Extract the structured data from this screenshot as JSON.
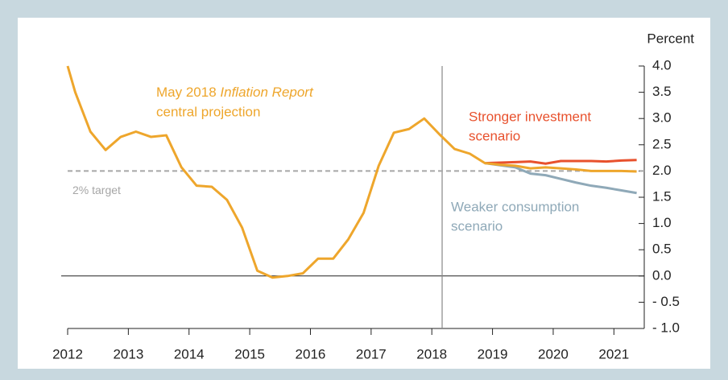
{
  "chart_data": {
    "type": "line",
    "y_axis_label": "Percent",
    "xlim": [
      2012,
      2021.5
    ],
    "ylim": [
      -1,
      4
    ],
    "xticks": [
      2012,
      2013,
      2014,
      2015,
      2016,
      2017,
      2018,
      2019,
      2020,
      2021
    ],
    "yticks": [
      {
        "value": 4,
        "label": "4.0"
      },
      {
        "value": 3.5,
        "label": "3.5"
      },
      {
        "value": 3,
        "label": "3.0"
      },
      {
        "value": 2.5,
        "label": "2.5"
      },
      {
        "value": 2,
        "label": "2.0"
      },
      {
        "value": 1.5,
        "label": "1.5"
      },
      {
        "value": 1,
        "label": "1.0"
      },
      {
        "value": 0.5,
        "label": "0.5"
      },
      {
        "value": 0,
        "label": "0.0"
      },
      {
        "value": -0.5,
        "label": "- 0.5"
      },
      {
        "value": -1,
        "label": "- 1.0"
      }
    ],
    "target": {
      "value": 2,
      "label": "2% target"
    },
    "vline": 2018.17,
    "series": [
      {
        "color": "#e8512d",
        "x": [
          2018.875,
          2019.125,
          2019.375,
          2019.625,
          2019.875,
          2020.125,
          2020.375,
          2020.625,
          2020.875,
          2021.125,
          2021.375
        ],
        "values": [
          2.15,
          2.16,
          2.17,
          2.18,
          2.14,
          2.19,
          2.19,
          2.19,
          2.18,
          2.2,
          2.21
        ]
      },
      {
        "color": "#8fa9b8",
        "x": [
          2018.875,
          2019.125,
          2019.375,
          2019.625,
          2019.875,
          2020.125,
          2020.375,
          2020.625,
          2020.875,
          2021.125,
          2021.375
        ],
        "values": [
          2.15,
          2.11,
          2.07,
          1.95,
          1.92,
          1.85,
          1.78,
          1.72,
          1.68,
          1.63,
          1.58
        ]
      },
      {
        "color": "#eea62c",
        "x": [
          2012.0,
          2012.125,
          2012.375,
          2012.625,
          2012.875,
          2013.125,
          2013.375,
          2013.625,
          2013.875,
          2014.125,
          2014.375,
          2014.625,
          2014.875,
          2015.125,
          2015.375,
          2015.625,
          2015.875,
          2016.125,
          2016.375,
          2016.625,
          2016.875,
          2017.125,
          2017.375,
          2017.625,
          2017.875,
          2018.125,
          2018.375,
          2018.625,
          2018.875,
          2019.125,
          2019.375,
          2019.625,
          2019.875,
          2020.125,
          2020.375,
          2020.625,
          2020.875,
          2021.125,
          2021.375
        ],
        "values": [
          4.0,
          3.5,
          2.75,
          2.4,
          2.65,
          2.75,
          2.65,
          2.68,
          2.07,
          1.72,
          1.7,
          1.45,
          0.92,
          0.1,
          -0.03,
          0.0,
          0.05,
          0.33,
          0.33,
          0.7,
          1.2,
          2.1,
          2.73,
          2.8,
          3.0,
          2.7,
          2.42,
          2.33,
          2.15,
          2.12,
          2.1,
          2.05,
          2.07,
          2.05,
          2.03,
          2.0,
          2.0,
          2.0,
          1.99
        ]
      }
    ],
    "annotations": {
      "central": {
        "prefix": "May 2018",
        "italic": "Inflation Report",
        "line2": "central projection"
      },
      "stronger": {
        "line1": "Stronger investment",
        "line2": "scenario"
      },
      "weaker": {
        "line1": "Weaker consumption",
        "line2": "scenario"
      }
    }
  }
}
